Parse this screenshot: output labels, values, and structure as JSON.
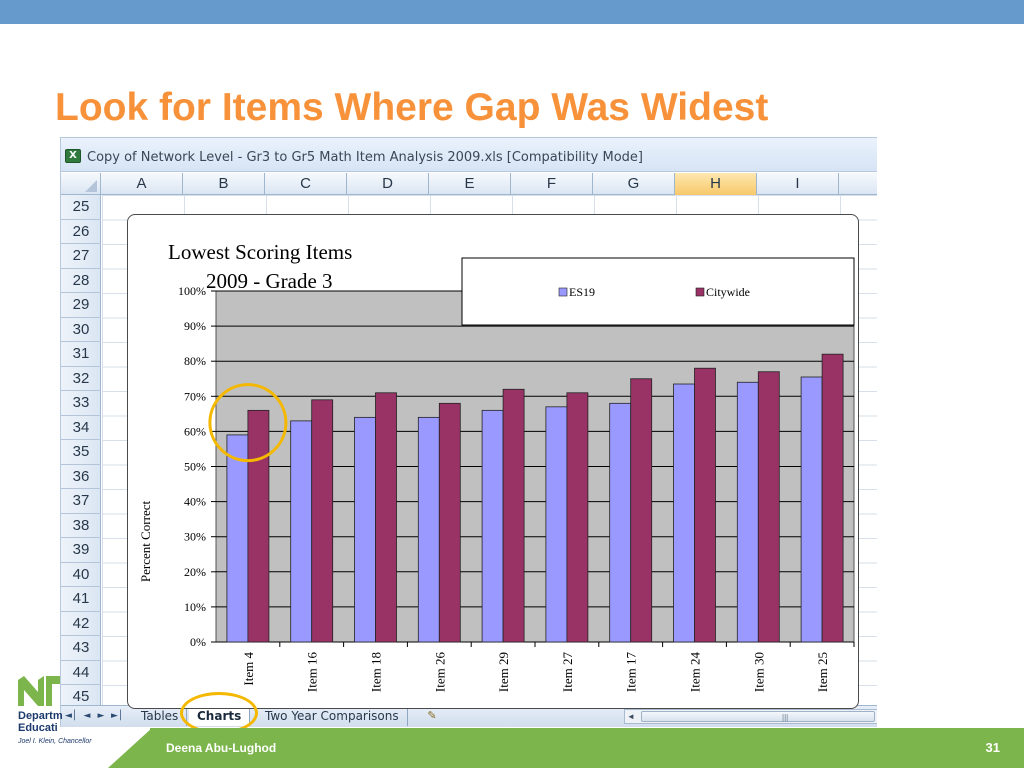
{
  "slide": {
    "title": "Look for Items Where Gap Was Widest",
    "footer_author": "Deena Abu-Lughod",
    "page_number": "31",
    "logo_line1": "Departm",
    "logo_line2": "Educati",
    "logo_line3": "Joel I. Klein, Chancellor"
  },
  "excel": {
    "window_title": "Copy of Network Level - Gr3 to Gr5 Math Item Analysis 2009.xls  [Compatibility Mode]",
    "columns": [
      "A",
      "B",
      "C",
      "D",
      "E",
      "F",
      "G",
      "H",
      "I"
    ],
    "active_column": "H",
    "rows": [
      "25",
      "26",
      "27",
      "28",
      "29",
      "30",
      "31",
      "32",
      "33",
      "34",
      "35",
      "36",
      "37",
      "38",
      "39",
      "40",
      "41",
      "42",
      "43",
      "44",
      "45"
    ],
    "sheet_tabs": [
      "Tables",
      "Charts",
      "Two Year Comparisons"
    ],
    "active_tab": "Charts",
    "nav_buttons": [
      "first-sheet",
      "prev-sheet",
      "next-sheet",
      "last-sheet"
    ]
  },
  "colors": {
    "title": "#f7923a",
    "es19": "#9999ff",
    "citywide": "#993366",
    "plot_bg": "#c0c0c0",
    "highlight": "#f5b800",
    "footer": "#7cb54b"
  },
  "chart_data": {
    "type": "bar",
    "title_line1": "Lowest Scoring Items",
    "title_line2": "2009 - Grade 3",
    "ylabel": "Percent Correct",
    "xlabel": "",
    "ylim": [
      0,
      100
    ],
    "yticks": [
      0,
      10,
      20,
      30,
      40,
      50,
      60,
      70,
      80,
      90,
      100
    ],
    "ytick_labels": [
      "0%",
      "10%",
      "20%",
      "30%",
      "40%",
      "50%",
      "60%",
      "70%",
      "80%",
      "90%",
      "100%"
    ],
    "grid": true,
    "legend_placement": "top-right",
    "categories": [
      "Item 4",
      "Item 16",
      "Item 18",
      "Item 26",
      "Item 29",
      "Item 27",
      "Item 17",
      "Item 24",
      "Item 30",
      "Item 25"
    ],
    "series": [
      {
        "name": "ES19",
        "values": [
          59,
          63,
          64,
          64,
          66,
          67,
          68,
          73.5,
          74,
          75.5
        ]
      },
      {
        "name": "Citywide",
        "values": [
          66,
          69,
          71,
          68,
          72,
          71,
          75,
          78,
          77,
          82
        ]
      }
    ],
    "highlighted_category": "Item 4"
  }
}
